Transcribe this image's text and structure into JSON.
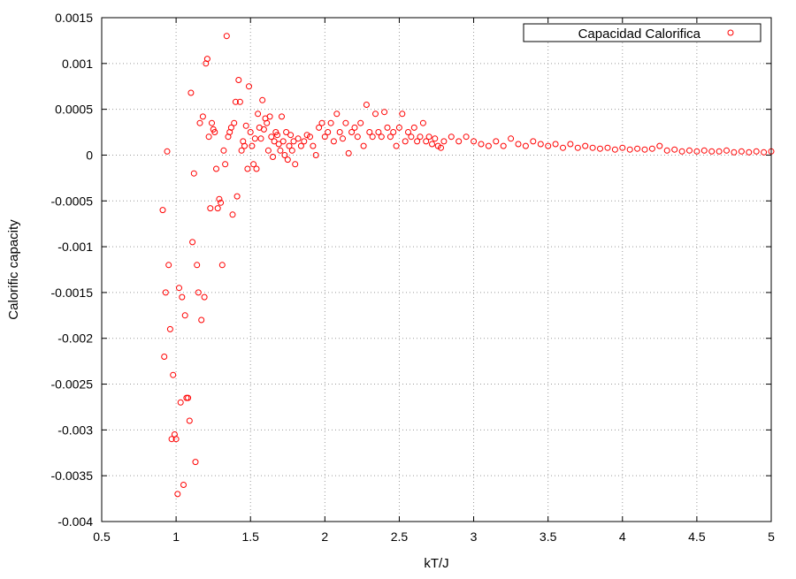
{
  "chart_data": {
    "type": "scatter",
    "title": "",
    "xlabel": "kT/J",
    "ylabel": "Calorific capacity",
    "xlim": [
      0.5,
      5
    ],
    "ylim": [
      -0.004,
      0.0015
    ],
    "x_ticks": [
      "0.5",
      "1",
      "1.5",
      "2",
      "2.5",
      "3",
      "3.5",
      "4",
      "4.5",
      "5"
    ],
    "y_ticks": [
      "-0.004",
      "-0.0035",
      "-0.003",
      "-0.0025",
      "-0.002",
      "-0.0015",
      "-0.001",
      "-0.0005",
      "0",
      "0.0005",
      "0.001",
      "0.0015"
    ],
    "grid": true,
    "legend_position": "top-right",
    "series": [
      {
        "name": "Capacidad Calorifica",
        "color": "#ff0000",
        "marker": "open-circle",
        "points": [
          [
            0.91,
            -0.0006
          ],
          [
            0.92,
            -0.0022
          ],
          [
            0.93,
            -0.0015
          ],
          [
            0.94,
            4e-05
          ],
          [
            0.95,
            -0.0012
          ],
          [
            0.96,
            -0.0019
          ],
          [
            0.97,
            -0.0031
          ],
          [
            0.98,
            -0.0024
          ],
          [
            0.99,
            -0.00305
          ],
          [
            1.0,
            -0.0031
          ],
          [
            1.01,
            -0.0037
          ],
          [
            1.02,
            -0.00145
          ],
          [
            1.03,
            -0.0027
          ],
          [
            1.04,
            -0.00155
          ],
          [
            1.05,
            -0.0036
          ],
          [
            1.06,
            -0.00175
          ],
          [
            1.07,
            -0.00265
          ],
          [
            1.08,
            -0.00265
          ],
          [
            1.09,
            -0.0029
          ],
          [
            1.1,
            0.00068
          ],
          [
            1.11,
            -0.00095
          ],
          [
            1.12,
            -0.0002
          ],
          [
            1.13,
            -0.00335
          ],
          [
            1.14,
            -0.0012
          ],
          [
            1.15,
            -0.0015
          ],
          [
            1.16,
            0.00035
          ],
          [
            1.17,
            -0.0018
          ],
          [
            1.18,
            0.00042
          ],
          [
            1.19,
            -0.00155
          ],
          [
            1.2,
            0.001
          ],
          [
            1.21,
            0.00105
          ],
          [
            1.22,
            0.0002
          ],
          [
            1.23,
            -0.00058
          ],
          [
            1.24,
            0.00035
          ],
          [
            1.25,
            0.00028
          ],
          [
            1.26,
            0.00025
          ],
          [
            1.27,
            -0.00015
          ],
          [
            1.28,
            -0.00058
          ],
          [
            1.29,
            -0.00048
          ],
          [
            1.3,
            -0.00052
          ],
          [
            1.31,
            -0.0012
          ],
          [
            1.32,
            5e-05
          ],
          [
            1.33,
            -0.0001
          ],
          [
            1.34,
            0.0013
          ],
          [
            1.35,
            0.0002
          ],
          [
            1.36,
            0.00025
          ],
          [
            1.37,
            0.0003
          ],
          [
            1.38,
            -0.00065
          ],
          [
            1.39,
            0.00035
          ],
          [
            1.4,
            0.00058
          ],
          [
            1.41,
            -0.00045
          ],
          [
            1.42,
            0.00082
          ],
          [
            1.43,
            0.00058
          ],
          [
            1.44,
            5e-05
          ],
          [
            1.45,
            0.00015
          ],
          [
            1.46,
            0.0001
          ],
          [
            1.47,
            0.00032
          ],
          [
            1.48,
            -0.00015
          ],
          [
            1.49,
            0.00075
          ],
          [
            1.5,
            0.00025
          ],
          [
            1.51,
            0.0001
          ],
          [
            1.52,
            -0.0001
          ],
          [
            1.53,
            0.00018
          ],
          [
            1.54,
            -0.00015
          ],
          [
            1.55,
            0.00045
          ],
          [
            1.56,
            0.0003
          ],
          [
            1.57,
            0.00018
          ],
          [
            1.58,
            0.0006
          ],
          [
            1.59,
            0.00028
          ],
          [
            1.6,
            0.0004
          ],
          [
            1.61,
            0.00035
          ],
          [
            1.62,
            5e-05
          ],
          [
            1.63,
            0.00042
          ],
          [
            1.64,
            0.0002
          ],
          [
            1.65,
            -2e-05
          ],
          [
            1.66,
            0.00015
          ],
          [
            1.67,
            0.00025
          ],
          [
            1.68,
            0.00022
          ],
          [
            1.69,
            0.00012
          ],
          [
            1.7,
            5e-05
          ],
          [
            1.71,
            0.00042
          ],
          [
            1.72,
            0.00015
          ],
          [
            1.73,
            0.0
          ],
          [
            1.74,
            0.00025
          ],
          [
            1.75,
            -5e-05
          ],
          [
            1.76,
            0.0001
          ],
          [
            1.77,
            0.00022
          ],
          [
            1.78,
            5e-05
          ],
          [
            1.79,
            0.00015
          ],
          [
            1.8,
            -0.0001
          ],
          [
            1.82,
            0.00018
          ],
          [
            1.84,
            0.0001
          ],
          [
            1.86,
            0.00015
          ],
          [
            1.88,
            0.00022
          ],
          [
            1.9,
            0.0002
          ],
          [
            1.92,
            0.0001
          ],
          [
            1.94,
            0.0
          ],
          [
            1.96,
            0.0003
          ],
          [
            1.98,
            0.00035
          ],
          [
            2.0,
            0.0002
          ],
          [
            2.02,
            0.00025
          ],
          [
            2.04,
            0.00035
          ],
          [
            2.06,
            0.00015
          ],
          [
            2.08,
            0.00045
          ],
          [
            2.1,
            0.00025
          ],
          [
            2.12,
            0.00018
          ],
          [
            2.14,
            0.00035
          ],
          [
            2.16,
            2e-05
          ],
          [
            2.18,
            0.00025
          ],
          [
            2.2,
            0.0003
          ],
          [
            2.22,
            0.0002
          ],
          [
            2.24,
            0.00035
          ],
          [
            2.26,
            0.0001
          ],
          [
            2.28,
            0.00055
          ],
          [
            2.3,
            0.00025
          ],
          [
            2.32,
            0.0002
          ],
          [
            2.34,
            0.00045
          ],
          [
            2.36,
            0.00025
          ],
          [
            2.38,
            0.0002
          ],
          [
            2.4,
            0.00047
          ],
          [
            2.42,
            0.0003
          ],
          [
            2.44,
            0.0002
          ],
          [
            2.46,
            0.00025
          ],
          [
            2.48,
            0.0001
          ],
          [
            2.5,
            0.0003
          ],
          [
            2.52,
            0.00045
          ],
          [
            2.54,
            0.00015
          ],
          [
            2.56,
            0.00025
          ],
          [
            2.58,
            0.0002
          ],
          [
            2.6,
            0.0003
          ],
          [
            2.62,
            0.00015
          ],
          [
            2.64,
            0.0002
          ],
          [
            2.66,
            0.00035
          ],
          [
            2.68,
            0.00015
          ],
          [
            2.7,
            0.0002
          ],
          [
            2.72,
            0.00012
          ],
          [
            2.74,
            0.00018
          ],
          [
            2.76,
            0.0001
          ],
          [
            2.78,
            8e-05
          ],
          [
            2.8,
            0.00015
          ],
          [
            2.85,
            0.0002
          ],
          [
            2.9,
            0.00015
          ],
          [
            2.95,
            0.0002
          ],
          [
            3.0,
            0.00015
          ],
          [
            3.05,
            0.00012
          ],
          [
            3.1,
            0.0001
          ],
          [
            3.15,
            0.00015
          ],
          [
            3.2,
            0.0001
          ],
          [
            3.25,
            0.00018
          ],
          [
            3.3,
            0.00012
          ],
          [
            3.35,
            0.0001
          ],
          [
            3.4,
            0.00015
          ],
          [
            3.45,
            0.00012
          ],
          [
            3.5,
            0.0001
          ],
          [
            3.55,
            0.00012
          ],
          [
            3.6,
            8e-05
          ],
          [
            3.65,
            0.00012
          ],
          [
            3.7,
            8e-05
          ],
          [
            3.75,
            0.0001
          ],
          [
            3.8,
            8e-05
          ],
          [
            3.85,
            7e-05
          ],
          [
            3.9,
            8e-05
          ],
          [
            3.95,
            6e-05
          ],
          [
            4.0,
            8e-05
          ],
          [
            4.05,
            6e-05
          ],
          [
            4.1,
            7e-05
          ],
          [
            4.15,
            6e-05
          ],
          [
            4.2,
            7e-05
          ],
          [
            4.25,
            0.0001
          ],
          [
            4.3,
            5e-05
          ],
          [
            4.35,
            6e-05
          ],
          [
            4.4,
            4e-05
          ],
          [
            4.45,
            5e-05
          ],
          [
            4.5,
            4e-05
          ],
          [
            4.55,
            5e-05
          ],
          [
            4.6,
            4e-05
          ],
          [
            4.65,
            4e-05
          ],
          [
            4.7,
            5e-05
          ],
          [
            4.75,
            3e-05
          ],
          [
            4.8,
            4e-05
          ],
          [
            4.85,
            3e-05
          ],
          [
            4.9,
            4e-05
          ],
          [
            4.95,
            3e-05
          ],
          [
            5.0,
            4e-05
          ]
        ]
      }
    ]
  }
}
